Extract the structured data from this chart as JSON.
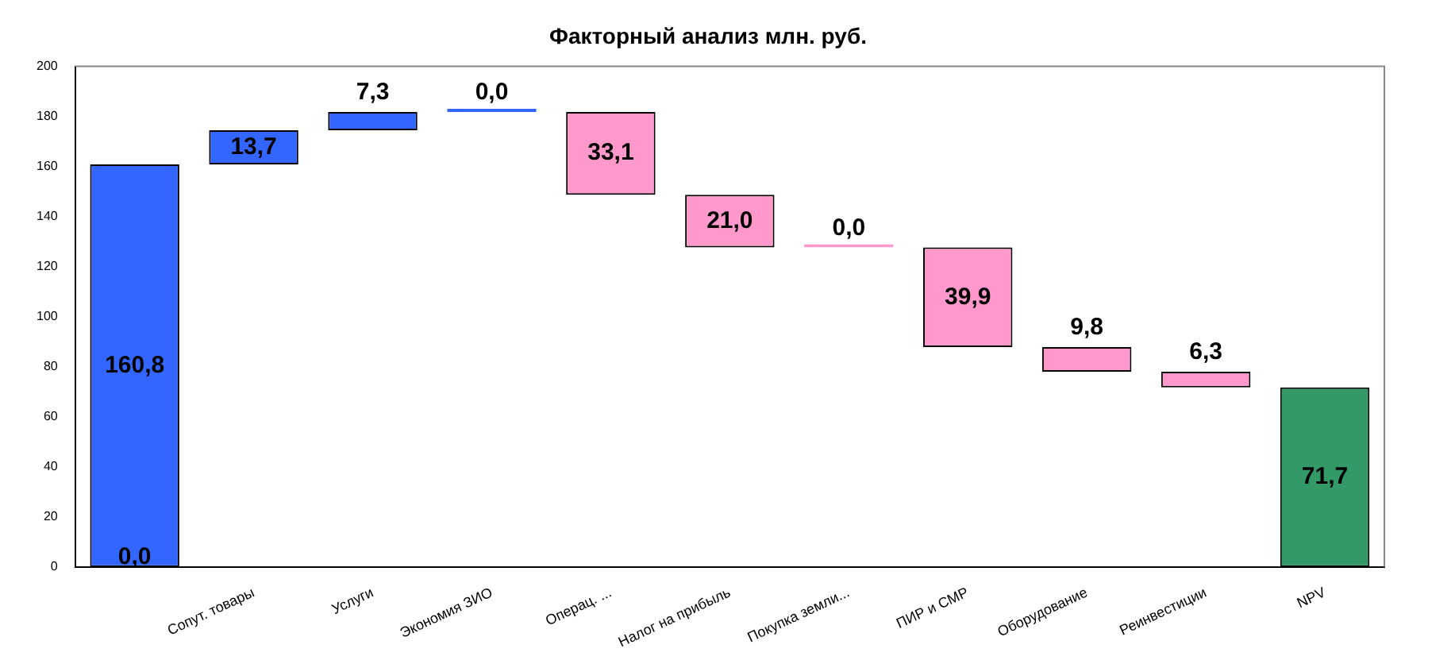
{
  "chart_data": {
    "type": "bar",
    "title": "Факторный анализ млн. руб.",
    "categories": [
      null,
      "Сопут. товары",
      "Услуги",
      "Экономия ЗИО",
      "Операц. ...",
      "Налог на прибыль",
      "Покупка земли...",
      "ПИР и СМР",
      "Оборудование",
      "Реинвестиции",
      "NPV"
    ],
    "base": [
      0,
      160.8,
      174.5,
      181.8,
      181.8,
      148.7,
      127.7,
      127.7,
      87.8,
      78,
      0
    ],
    "values": [
      160.8,
      13.7,
      7.3,
      0,
      -33.1,
      -21,
      0,
      -39.9,
      -9.8,
      -6.3,
      71.7
    ],
    "value_labels": [
      "160,8",
      "13,7",
      "7,3",
      "0,0",
      "33,1",
      "21,0",
      "0,0",
      "39,9",
      "9,8",
      "6,3",
      "71,7"
    ],
    "colors": [
      "#3366ff",
      "#3366ff",
      "#3366ff",
      "#3366ff",
      "#ff99cc",
      "#ff99cc",
      "#ff99cc",
      "#ff99cc",
      "#ff99cc",
      "#ff99cc",
      "#339966"
    ],
    "annotations": [
      "0,0"
    ],
    "ylim": [
      0,
      200
    ],
    "yticks": [
      0,
      20,
      40,
      60,
      80,
      100,
      120,
      140,
      160,
      180,
      200
    ],
    "grid": false,
    "legend": false
  }
}
